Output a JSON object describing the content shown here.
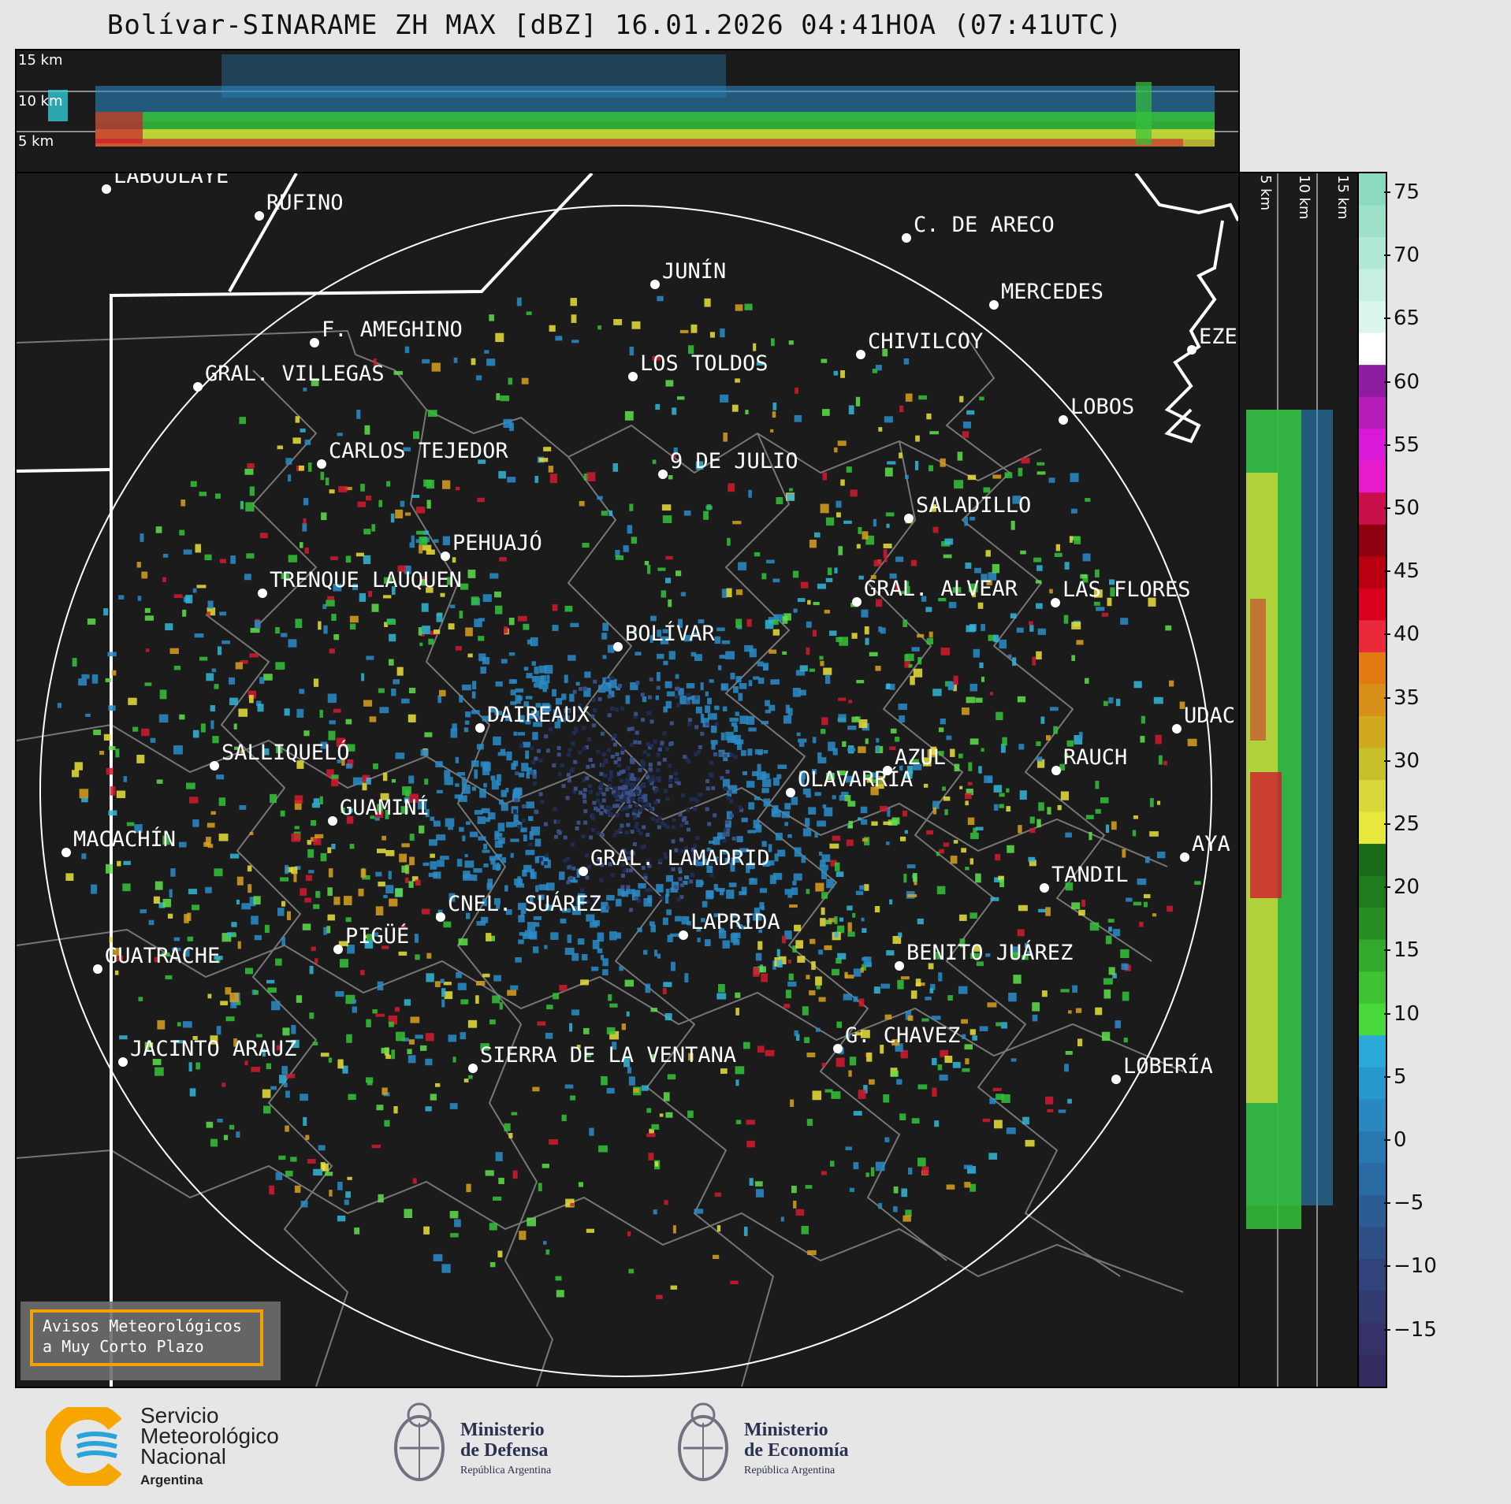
{
  "title": "Bolívar-SINARAME ZH MAX [dBZ] 16.01.2026 04:41HOA (07:41UTC)",
  "top_panel": {
    "height_labels": [
      "15 km",
      "10 km",
      "5 km"
    ]
  },
  "right_panel": {
    "height_labels": [
      "5 km",
      "10 km",
      "15 km"
    ]
  },
  "colorbar": {
    "ticks": [
      "75",
      "70",
      "65",
      "60",
      "55",
      "50",
      "45",
      "40",
      "35",
      "30",
      "25",
      "20",
      "15",
      "10",
      "5",
      "0",
      "−5",
      "−10",
      "−15"
    ]
  },
  "cities": [
    {
      "name": "LABOULAYE"
    },
    {
      "name": "RUFINO"
    },
    {
      "name": "C. DE ARECO"
    },
    {
      "name": "JUNÍN"
    },
    {
      "name": "MERCEDES"
    },
    {
      "name": "F. AMEGHINO"
    },
    {
      "name": "CHIVILCOY"
    },
    {
      "name": "EZE"
    },
    {
      "name": "LOS TOLDOS"
    },
    {
      "name": "GRAL. VILLEGAS"
    },
    {
      "name": "LOBOS"
    },
    {
      "name": "CARLOS TEJEDOR"
    },
    {
      "name": "9 DE JULIO"
    },
    {
      "name": "SALADILLO"
    },
    {
      "name": "PEHUAJÓ"
    },
    {
      "name": "TRENQUE LAUQUEN"
    },
    {
      "name": "GRAL. ALVEAR"
    },
    {
      "name": "LAS FLORES"
    },
    {
      "name": "BOLÍVAR"
    },
    {
      "name": "DAIREAUX"
    },
    {
      "name": "UDAC"
    },
    {
      "name": "SALLIQUELÓ"
    },
    {
      "name": "AZUL"
    },
    {
      "name": "RAUCH"
    },
    {
      "name": "OLAVARRÍA"
    },
    {
      "name": "GUAMINÍ"
    },
    {
      "name": "MACACHÍN"
    },
    {
      "name": "AYA"
    },
    {
      "name": "GRAL. LAMADRID"
    },
    {
      "name": "TANDIL"
    },
    {
      "name": "CNEL. SUÁREZ"
    },
    {
      "name": "LAPRIDA"
    },
    {
      "name": "PIGÜÉ"
    },
    {
      "name": "GUATRACHE"
    },
    {
      "name": "BENITO JUÁREZ"
    },
    {
      "name": "G. CHAVEZ"
    },
    {
      "name": "JACINTO ARAUZ"
    },
    {
      "name": "SIERRA DE LA VENTANA"
    },
    {
      "name": "LOBERÍA"
    }
  ],
  "warning_box": {
    "line1": "Avisos Meteorológicos",
    "line2": "a Muy Corto Plazo"
  },
  "logos": {
    "smn": {
      "line1": "Servicio",
      "line2": "Meteorológico",
      "line3": "Nacional",
      "line4": "Argentina"
    },
    "defensa": {
      "line1": "Ministerio",
      "line2": "de Defensa",
      "line3": "República Argentina"
    },
    "economia": {
      "line1": "Ministerio",
      "line2": "de Economía",
      "line3": "República Argentina"
    }
  },
  "colors": {
    "panel_bg": "#1b1b1b",
    "range_ring": "#ffffff",
    "warning_border": "#f5a000",
    "smn_blue": "#2aa3dc",
    "smn_orange": "#f7a600"
  }
}
